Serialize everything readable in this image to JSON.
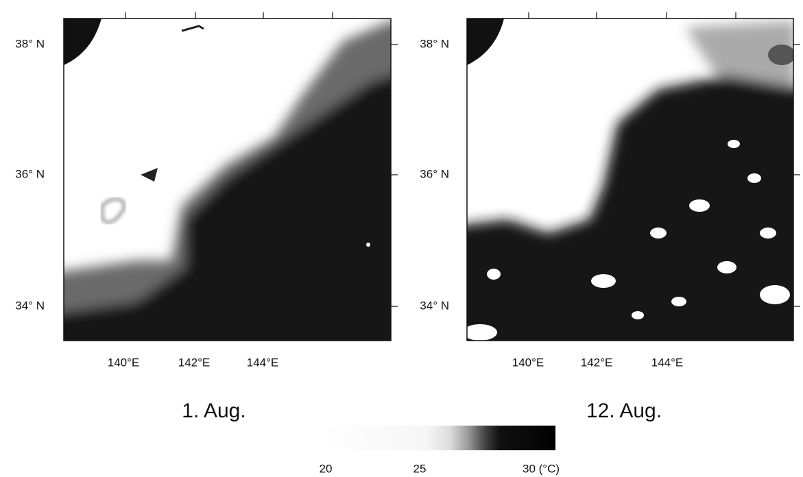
{
  "panels": [
    {
      "caption": "1. Aug.",
      "lat_labels": [
        "38° N",
        "36° N",
        "34° N"
      ],
      "lon_labels": [
        "140°E",
        "142°E",
        "144°E"
      ]
    },
    {
      "caption": "12. Aug.",
      "lat_labels": [
        "38° N",
        "36° N",
        "34° N"
      ],
      "lon_labels": [
        "140°E",
        "142°E",
        "144°E"
      ]
    }
  ],
  "colorbar": {
    "labels": [
      "20",
      "25",
      "30 (°C)"
    ]
  }
}
